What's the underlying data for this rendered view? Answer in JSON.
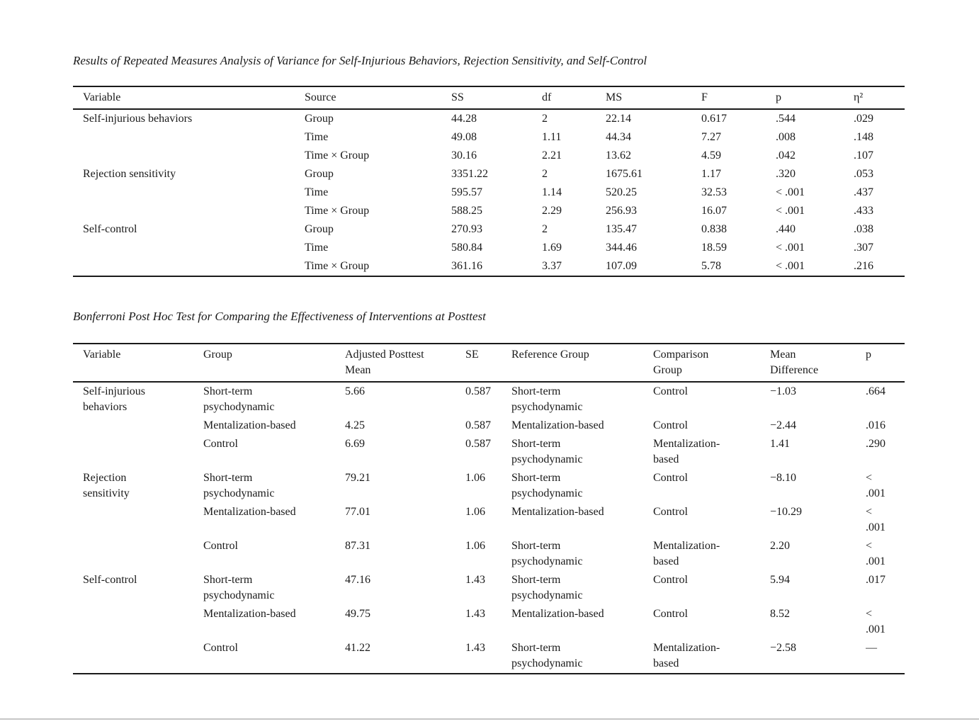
{
  "tables": {
    "anova": {
      "title": "Results of Repeated Measures Analysis of Variance for Self-Injurious Behaviors, Rejection Sensitivity, and Self-Control",
      "columns": [
        "Variable",
        "Source",
        "SS",
        "df",
        "MS",
        "F",
        "p",
        "η²"
      ],
      "rows": [
        [
          "Self-injurious behaviors",
          "Group",
          "44.28",
          "2",
          "22.14",
          "0.617",
          ".544",
          ".029"
        ],
        [
          "",
          "Time",
          "49.08",
          "1.11",
          "44.34",
          "7.27",
          ".008",
          ".148"
        ],
        [
          "",
          "Time × Group",
          "30.16",
          "2.21",
          "13.62",
          "4.59",
          ".042",
          ".107"
        ],
        [
          "Rejection sensitivity",
          "Group",
          "3351.22",
          "2",
          "1675.61",
          "1.17",
          ".320",
          ".053"
        ],
        [
          "",
          "Time",
          "595.57",
          "1.14",
          "520.25",
          "32.53",
          "< .001",
          ".437"
        ],
        [
          "",
          "Time × Group",
          "588.25",
          "2.29",
          "256.93",
          "16.07",
          "< .001",
          ".433"
        ],
        [
          "Self-control",
          "Group",
          "270.93",
          "2",
          "135.47",
          "0.838",
          ".440",
          ".038"
        ],
        [
          "",
          "Time",
          "580.84",
          "1.69",
          "344.46",
          "18.59",
          "< .001",
          ".307"
        ],
        [
          "",
          "Time × Group",
          "361.16",
          "3.37",
          "107.09",
          "5.78",
          "< .001",
          ".216"
        ]
      ]
    },
    "posthoc": {
      "title": "Bonferroni Post Hoc Test for Comparing the Effectiveness of Interventions at Posttest",
      "columns": [
        "Variable",
        "Group",
        "Adjusted Posttest\nMean",
        "SE",
        "Reference Group",
        "Comparison\nGroup",
        "Mean\nDifference",
        "p"
      ],
      "rows": [
        [
          "Self-injurious\nbehaviors",
          "Short-term\npsychodynamic",
          "5.66",
          "0.587",
          "Short-term\npsychodynamic",
          "Control",
          "−1.03",
          ".664"
        ],
        [
          "",
          "Mentalization-based",
          "4.25",
          "0.587",
          "Mentalization-based",
          "Control",
          "−2.44",
          ".016"
        ],
        [
          "",
          "Control",
          "6.69",
          "0.587",
          "Short-term\npsychodynamic",
          "Mentalization-\nbased",
          "1.41",
          ".290"
        ],
        [
          "Rejection\nsensitivity",
          "Short-term\npsychodynamic",
          "79.21",
          "1.06",
          "Short-term\npsychodynamic",
          "Control",
          "−8.10",
          "<\n.001"
        ],
        [
          "",
          "Mentalization-based",
          "77.01",
          "1.06",
          "Mentalization-based",
          "Control",
          "−10.29",
          "<\n.001"
        ],
        [
          "",
          "Control",
          "87.31",
          "1.06",
          "Short-term\npsychodynamic",
          "Mentalization-\nbased",
          "2.20",
          "<\n.001"
        ],
        [
          "Self-control",
          "Short-term\npsychodynamic",
          "47.16",
          "1.43",
          "Short-term\npsychodynamic",
          "Control",
          "5.94",
          ".017"
        ],
        [
          "",
          "Mentalization-based",
          "49.75",
          "1.43",
          "Mentalization-based",
          "Control",
          "8.52",
          "<\n.001"
        ],
        [
          "",
          "Control",
          "41.22",
          "1.43",
          "Short-term\npsychodynamic",
          "Mentalization-\nbased",
          "−2.58",
          "—"
        ]
      ]
    }
  }
}
